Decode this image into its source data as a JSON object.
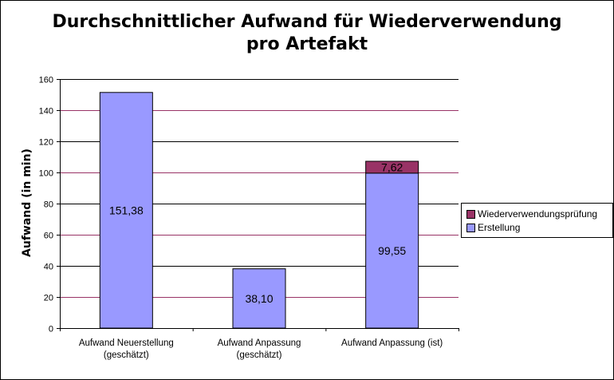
{
  "chart_data": {
    "type": "bar",
    "stacked": true,
    "title": [
      "Durchschnittlicher Aufwand für Wiederverwendung",
      "pro Artefakt"
    ],
    "ylabel": "Aufwand (in min)",
    "xlabel": "",
    "ylim": [
      0,
      160
    ],
    "yticks": [
      "0",
      "20",
      "40",
      "60",
      "80",
      "100",
      "120",
      "140",
      "160"
    ],
    "categories": [
      [
        "Aufwand Neuerstellung",
        "(geschätzt)"
      ],
      [
        "Aufwand Anpassung",
        "(geschätzt)"
      ],
      [
        "Aufwand Anpassung (ist)"
      ]
    ],
    "series": [
      {
        "name": "Erstellung",
        "color": "#9999ff",
        "values": [
          151.38,
          38.1,
          99.55
        ],
        "labels": [
          "151,38",
          "38,10",
          "99,55"
        ]
      },
      {
        "name": "Wiederverwendungsprüfung",
        "color": "#993366",
        "values": [
          0,
          0,
          7.62
        ],
        "labels": [
          "",
          "",
          "7,62"
        ]
      }
    ],
    "gridlines": true,
    "legend_position": "right",
    "gridline_colors": [
      "#000000",
      "#993366"
    ]
  }
}
